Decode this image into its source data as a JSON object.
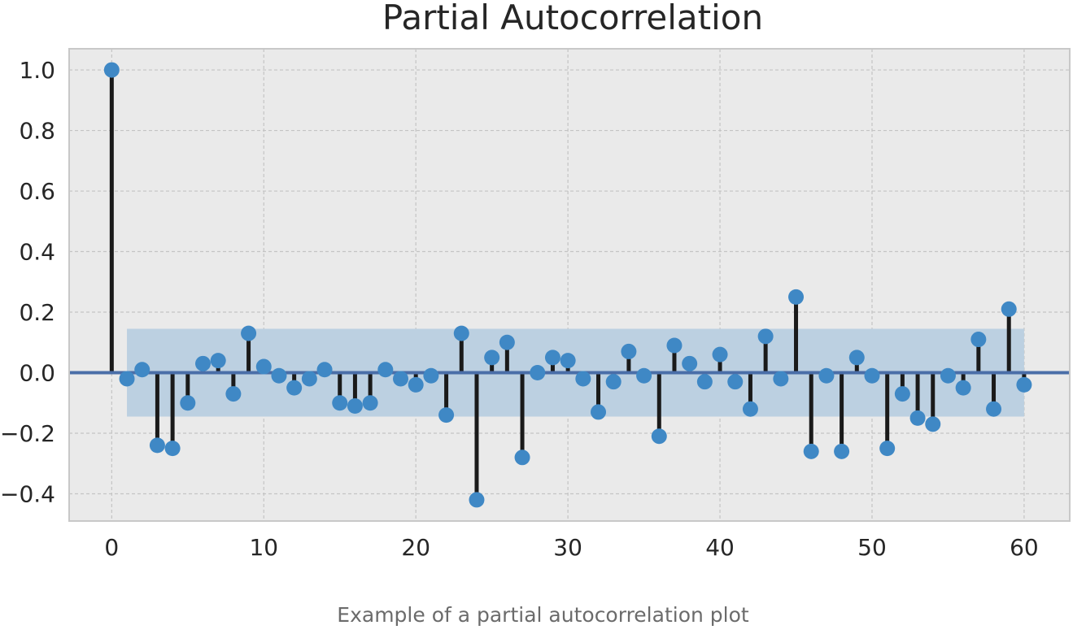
{
  "caption": "Example of a partial autocorrelation plot",
  "chart_data": {
    "type": "stem",
    "title": "Partial Autocorrelation",
    "xlabel": "",
    "ylabel": "",
    "xlim": [
      -2.8,
      63
    ],
    "ylim": [
      -0.49,
      1.07
    ],
    "x_ticks": [
      0,
      10,
      20,
      30,
      40,
      50,
      60
    ],
    "y_ticks": [
      -0.4,
      -0.2,
      0.0,
      0.2,
      0.4,
      0.6,
      0.8,
      1.0
    ],
    "x_tick_labels": [
      "0",
      "10",
      "20",
      "30",
      "40",
      "50",
      "60"
    ],
    "y_tick_labels": [
      "−0.4",
      "−0.2",
      "0.0",
      "0.2",
      "0.4",
      "0.6",
      "0.8",
      "1.0"
    ],
    "grid": true,
    "confidence_band": {
      "x_start": 1,
      "x_end": 60,
      "lower": -0.145,
      "upper": 0.145
    },
    "lags": [
      0,
      1,
      2,
      3,
      4,
      5,
      6,
      7,
      8,
      9,
      10,
      11,
      12,
      13,
      14,
      15,
      16,
      17,
      18,
      19,
      20,
      21,
      22,
      23,
      24,
      25,
      26,
      27,
      28,
      29,
      30,
      31,
      32,
      33,
      34,
      35,
      36,
      37,
      38,
      39,
      40,
      41,
      42,
      43,
      44,
      45,
      46,
      47,
      48,
      49,
      50,
      51,
      52,
      53,
      54,
      55,
      56,
      57,
      58,
      59,
      60
    ],
    "values": [
      1.0,
      -0.02,
      0.01,
      -0.24,
      -0.25,
      -0.1,
      0.03,
      0.04,
      -0.07,
      0.13,
      0.02,
      -0.01,
      -0.05,
      -0.02,
      0.01,
      -0.1,
      -0.11,
      -0.1,
      0.01,
      -0.02,
      -0.04,
      -0.01,
      -0.14,
      0.13,
      -0.42,
      0.05,
      0.1,
      -0.28,
      0.0,
      0.05,
      0.04,
      -0.02,
      -0.13,
      -0.03,
      0.07,
      -0.01,
      -0.21,
      0.09,
      0.03,
      -0.03,
      0.06,
      -0.03,
      -0.12,
      0.12,
      -0.02,
      0.25,
      -0.26,
      -0.01,
      -0.26,
      0.05,
      -0.01,
      -0.25,
      -0.07,
      -0.15,
      -0.17,
      -0.01,
      -0.05,
      0.11,
      -0.12,
      0.21,
      -0.04
    ],
    "colors": {
      "plot_background": "#eaeaea",
      "frame": "#c8c8c8",
      "grid": "#c4c4c4",
      "band": "#bcd0e1",
      "stem": "#1a1a1a",
      "marker": "#3f88c5",
      "zero_line": "#4a6ea8"
    }
  }
}
